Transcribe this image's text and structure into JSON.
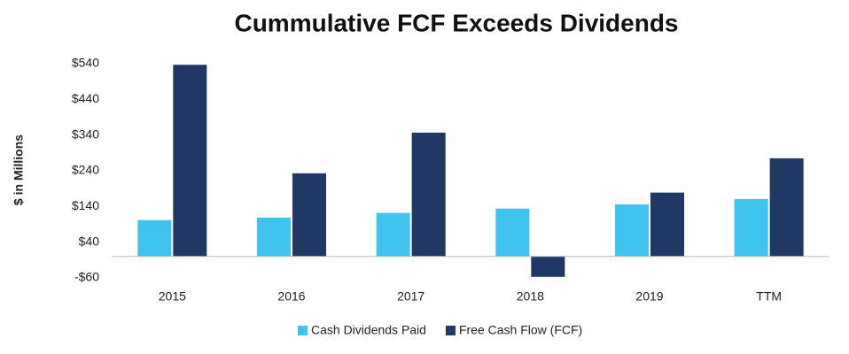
{
  "chart_data": {
    "type": "bar",
    "title": "Cummulative FCF Exceeds Dividends",
    "y_label": "$ in Millions",
    "categories": [
      "2015",
      "2016",
      "2017",
      "2018",
      "2019",
      "TTM"
    ],
    "series": [
      {
        "name": "Cash Dividends Paid",
        "color": "#3fc4ef",
        "values": [
          102,
          109,
          122,
          134,
          146,
          161
        ]
      },
      {
        "name": "Free Cash Flow (FCF)",
        "color": "#1f3864",
        "values": [
          537,
          233,
          347,
          -57,
          179,
          275
        ]
      }
    ],
    "ylim": [
      -60,
      540
    ],
    "yticks": [
      {
        "value": -60,
        "label": "-$60"
      },
      {
        "value": 40,
        "label": "$40"
      },
      {
        "value": 140,
        "label": "$140"
      },
      {
        "value": 240,
        "label": "$240"
      },
      {
        "value": 340,
        "label": "$340"
      },
      {
        "value": 440,
        "label": "$440"
      },
      {
        "value": 540,
        "label": "$540"
      }
    ],
    "grid": false,
    "legend": "bottom"
  }
}
